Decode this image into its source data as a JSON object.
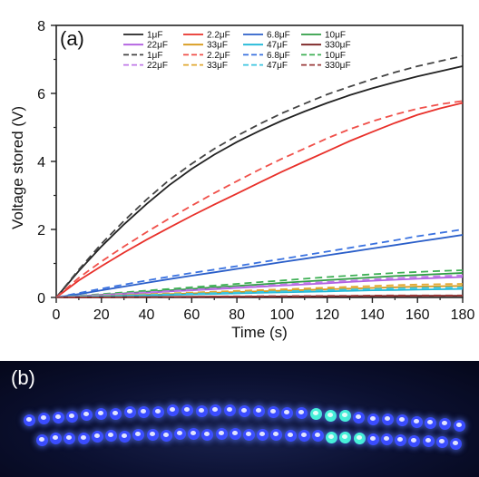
{
  "chart_data": {
    "type": "line",
    "panel_label": "(a)",
    "xlabel": "Time (s)",
    "ylabel": "Voltage stored (V)",
    "xlim": [
      0,
      180
    ],
    "ylim": [
      0,
      8
    ],
    "xticks": [
      0,
      20,
      40,
      60,
      80,
      100,
      120,
      140,
      160,
      180
    ],
    "yticks": [
      0,
      2,
      4,
      6,
      8
    ],
    "grid": false,
    "legend_position": "top",
    "legend_columns": 4,
    "x": [
      0,
      10,
      20,
      30,
      40,
      50,
      60,
      70,
      80,
      90,
      100,
      110,
      120,
      130,
      140,
      150,
      160,
      170,
      180
    ],
    "series": [
      {
        "name": "1μF",
        "color": "#222222",
        "dash": "solid",
        "values": [
          0,
          0.78,
          1.5,
          2.15,
          2.75,
          3.3,
          3.78,
          4.2,
          4.57,
          4.9,
          5.2,
          5.47,
          5.72,
          5.95,
          6.15,
          6.33,
          6.5,
          6.65,
          6.8
        ]
      },
      {
        "name": "2.2μF",
        "color": "#e8302a",
        "dash": "solid",
        "values": [
          0,
          0.5,
          0.92,
          1.32,
          1.7,
          2.05,
          2.4,
          2.73,
          3.05,
          3.38,
          3.7,
          4.0,
          4.3,
          4.6,
          4.87,
          5.13,
          5.37,
          5.56,
          5.72
        ]
      },
      {
        "name": "6.8μF",
        "color": "#2b5fc9",
        "dash": "solid",
        "values": [
          0,
          0.1,
          0.21,
          0.32,
          0.43,
          0.54,
          0.64,
          0.74,
          0.84,
          0.94,
          1.04,
          1.14,
          1.24,
          1.34,
          1.44,
          1.54,
          1.64,
          1.74,
          1.84
        ]
      },
      {
        "name": "10μF",
        "color": "#2f9e44",
        "dash": "solid",
        "values": [
          0,
          0.04,
          0.08,
          0.12,
          0.17,
          0.21,
          0.25,
          0.3,
          0.34,
          0.38,
          0.43,
          0.47,
          0.51,
          0.55,
          0.59,
          0.63,
          0.66,
          0.69,
          0.72
        ]
      },
      {
        "name": "22μF",
        "color": "#b05ee0",
        "dash": "solid",
        "values": [
          0,
          0.035,
          0.07,
          0.105,
          0.14,
          0.175,
          0.21,
          0.245,
          0.28,
          0.315,
          0.35,
          0.385,
          0.42,
          0.455,
          0.49,
          0.52,
          0.55,
          0.58,
          0.6
        ]
      },
      {
        "name": "33μF",
        "color": "#d89a1a",
        "dash": "solid",
        "values": [
          0,
          0.02,
          0.04,
          0.06,
          0.08,
          0.1,
          0.12,
          0.14,
          0.16,
          0.18,
          0.2,
          0.22,
          0.24,
          0.26,
          0.28,
          0.3,
          0.32,
          0.33,
          0.34
        ]
      },
      {
        "name": "47μF",
        "color": "#1fb8d8",
        "dash": "solid",
        "values": [
          0,
          0.015,
          0.03,
          0.045,
          0.06,
          0.075,
          0.09,
          0.105,
          0.12,
          0.135,
          0.15,
          0.165,
          0.18,
          0.195,
          0.21,
          0.22,
          0.23,
          0.24,
          0.25
        ]
      },
      {
        "name": "330μF",
        "color": "#7a2020",
        "dash": "solid",
        "values": [
          0,
          0.003,
          0.006,
          0.009,
          0.012,
          0.015,
          0.018,
          0.021,
          0.024,
          0.027,
          0.03,
          0.033,
          0.036,
          0.039,
          0.042,
          0.045,
          0.048,
          0.05,
          0.05
        ]
      },
      {
        "name": "1μF",
        "color": "#444444",
        "dash": "dashed",
        "values": [
          0,
          0.82,
          1.58,
          2.25,
          2.88,
          3.45,
          3.93,
          4.37,
          4.75,
          5.1,
          5.42,
          5.7,
          5.97,
          6.2,
          6.42,
          6.62,
          6.8,
          6.95,
          7.1
        ]
      },
      {
        "name": "2.2μF",
        "color": "#f0504a",
        "dash": "dashed",
        "values": [
          0,
          0.58,
          1.06,
          1.5,
          1.92,
          2.32,
          2.7,
          3.07,
          3.42,
          3.76,
          4.08,
          4.38,
          4.68,
          4.95,
          5.18,
          5.38,
          5.55,
          5.68,
          5.78
        ]
      },
      {
        "name": "6.8μF",
        "color": "#3a72e0",
        "dash": "dashed",
        "values": [
          0,
          0.13,
          0.26,
          0.38,
          0.5,
          0.61,
          0.72,
          0.82,
          0.92,
          1.03,
          1.13,
          1.24,
          1.35,
          1.46,
          1.57,
          1.68,
          1.8,
          1.9,
          2.0
        ]
      },
      {
        "name": "10μF",
        "color": "#3fb055",
        "dash": "dashed",
        "values": [
          0,
          0.05,
          0.1,
          0.15,
          0.2,
          0.25,
          0.3,
          0.35,
          0.4,
          0.45,
          0.5,
          0.55,
          0.6,
          0.64,
          0.68,
          0.72,
          0.75,
          0.78,
          0.8
        ]
      },
      {
        "name": "22μF",
        "color": "#c07ae8",
        "dash": "dashed",
        "values": [
          0,
          0.038,
          0.076,
          0.114,
          0.152,
          0.19,
          0.228,
          0.266,
          0.304,
          0.342,
          0.38,
          0.418,
          0.456,
          0.494,
          0.532,
          0.57,
          0.6,
          0.63,
          0.65
        ]
      },
      {
        "name": "33μF",
        "color": "#e0a830",
        "dash": "dashed",
        "values": [
          0,
          0.024,
          0.048,
          0.072,
          0.096,
          0.12,
          0.144,
          0.168,
          0.192,
          0.216,
          0.24,
          0.264,
          0.288,
          0.312,
          0.336,
          0.36,
          0.38,
          0.39,
          0.4
        ]
      },
      {
        "name": "47μF",
        "color": "#3cc6e0",
        "dash": "dashed",
        "values": [
          0,
          0.018,
          0.036,
          0.054,
          0.072,
          0.09,
          0.108,
          0.126,
          0.144,
          0.162,
          0.18,
          0.198,
          0.216,
          0.234,
          0.252,
          0.27,
          0.28,
          0.29,
          0.3
        ]
      },
      {
        "name": "330μF",
        "color": "#9a3a3a",
        "dash": "dashed",
        "values": [
          0,
          0.004,
          0.008,
          0.012,
          0.016,
          0.02,
          0.024,
          0.028,
          0.032,
          0.036,
          0.04,
          0.044,
          0.048,
          0.052,
          0.056,
          0.058,
          0.06,
          0.06,
          0.06
        ]
      }
    ]
  },
  "photo": {
    "label": "(b)",
    "background_color": "#0b1030",
    "led_color": "#3a4cff",
    "led_highlight_color": "#47f0d8"
  }
}
